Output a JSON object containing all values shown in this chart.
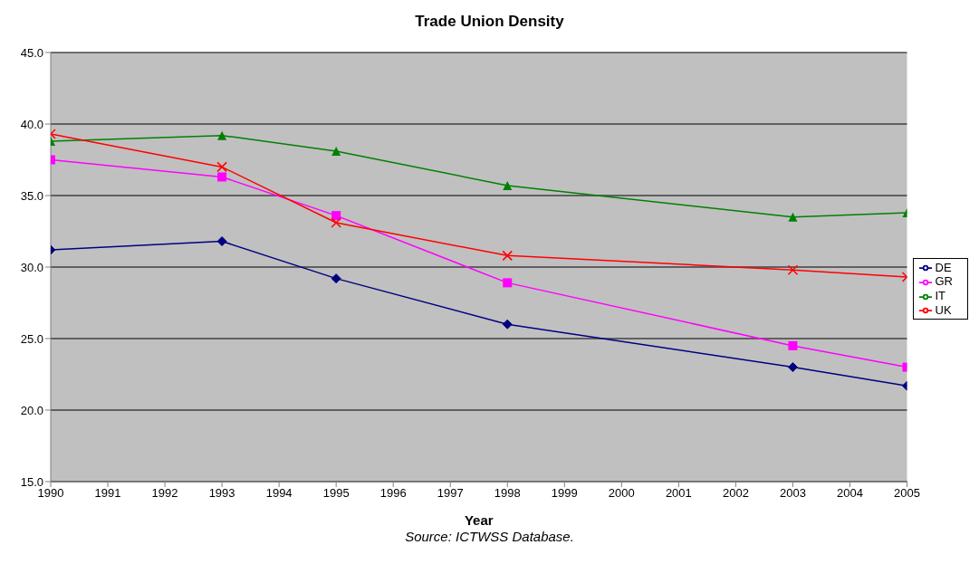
{
  "chart_data": {
    "type": "line",
    "title": "Trade Union Density",
    "xlabel": "Year",
    "annotations": [
      "Source: ICTWSS Database."
    ],
    "x": [
      1990,
      1993,
      1995,
      1998,
      2003,
      2005
    ],
    "series": [
      {
        "name": "DE",
        "color": "#000080",
        "marker": "diamond",
        "values": [
          31.2,
          31.8,
          29.2,
          26.0,
          23.0,
          21.7
        ]
      },
      {
        "name": "GR",
        "color": "#ff00ff",
        "marker": "square",
        "values": [
          37.5,
          36.3,
          33.6,
          28.9,
          24.5,
          23.0
        ]
      },
      {
        "name": "IT",
        "color": "#008000",
        "marker": "triangle",
        "values": [
          38.8,
          39.2,
          38.1,
          35.7,
          33.5,
          33.8
        ]
      },
      {
        "name": "UK",
        "color": "#ff0000",
        "marker": "cross",
        "values": [
          39.3,
          37.0,
          33.1,
          30.8,
          29.8,
          29.3
        ]
      }
    ],
    "xlim": [
      1990,
      2005
    ],
    "xticks": [
      1990,
      1991,
      1992,
      1993,
      1994,
      1995,
      1996,
      1997,
      1998,
      1999,
      2000,
      2001,
      2002,
      2003,
      2004,
      2005
    ],
    "ylim": [
      15,
      45
    ],
    "yticks": [
      {
        "value": 15,
        "label": "15.0"
      },
      {
        "value": 20,
        "label": "20.0"
      },
      {
        "value": 25,
        "label": "25.0"
      },
      {
        "value": 30,
        "label": "30.0"
      },
      {
        "value": 35,
        "label": "35.0"
      },
      {
        "value": 40,
        "label": "40.0"
      },
      {
        "value": 45,
        "label": "45.0"
      }
    ],
    "grid": "y",
    "legend": "right",
    "line_style": "solid"
  }
}
